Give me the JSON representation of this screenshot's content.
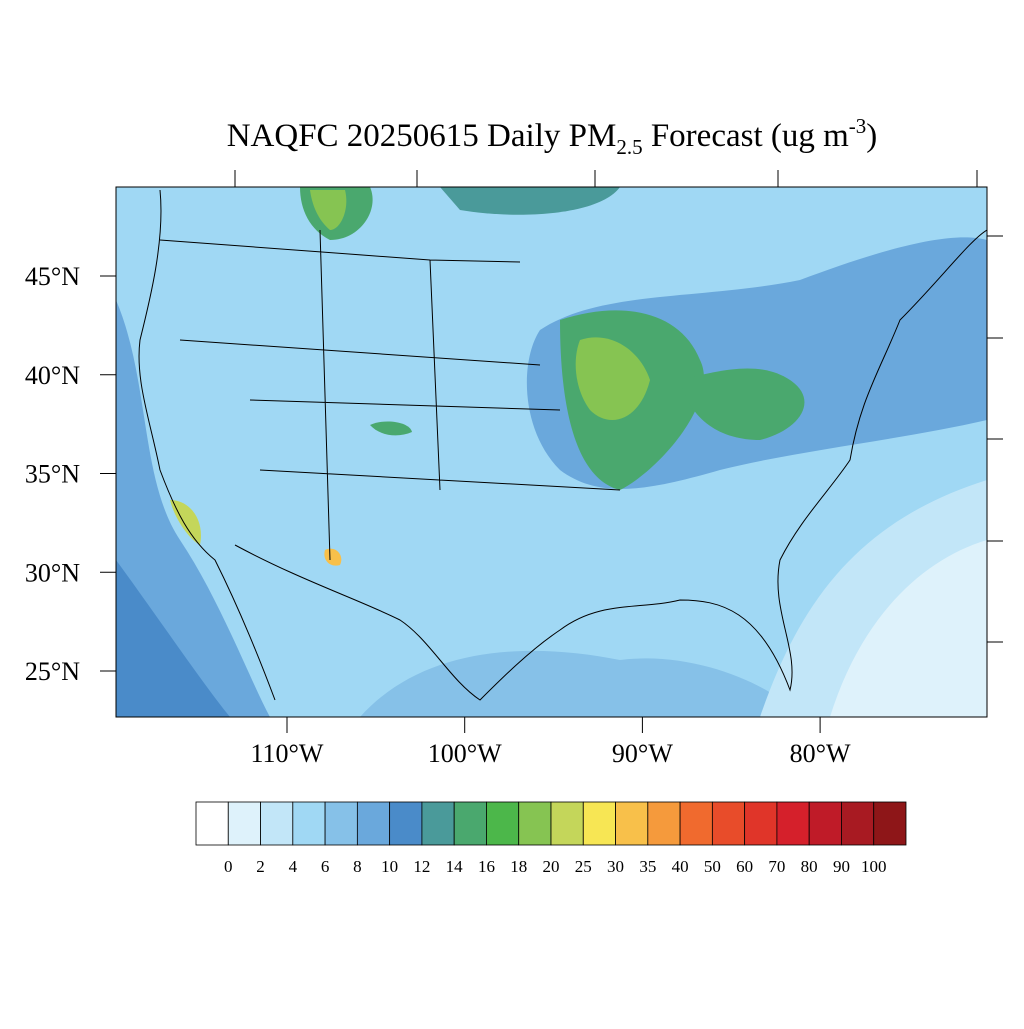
{
  "title": {
    "main": "NAQFC 20250615 Daily PM",
    "sub": "2.5",
    "middle": " Forecast (ug m",
    "sup": "-3",
    "end": ")"
  },
  "map": {
    "lat_labels": [
      "45°N",
      "40°N",
      "35°N",
      "30°N",
      "25°N"
    ],
    "lon_labels": [
      "110°W",
      "100°W",
      "90°W",
      "80°W"
    ]
  },
  "colorbar": {
    "levels": [
      0,
      2,
      4,
      6,
      8,
      10,
      12,
      14,
      16,
      18,
      20,
      25,
      30,
      35,
      40,
      50,
      60,
      70,
      80,
      90,
      100
    ],
    "colors": [
      "#ffffff",
      "#def2fb",
      "#c2e6f8",
      "#a0d8f4",
      "#86c1e8",
      "#6aa8dc",
      "#4a8bc9",
      "#4a9a9a",
      "#4aa86e",
      "#4cb74a",
      "#86c452",
      "#c4d65a",
      "#f7e654",
      "#f8c04a",
      "#f59a3c",
      "#f06a2e",
      "#e84c2a",
      "#e03529",
      "#d5202b",
      "#bf1b28",
      "#a81a22",
      "#8e1618"
    ]
  }
}
